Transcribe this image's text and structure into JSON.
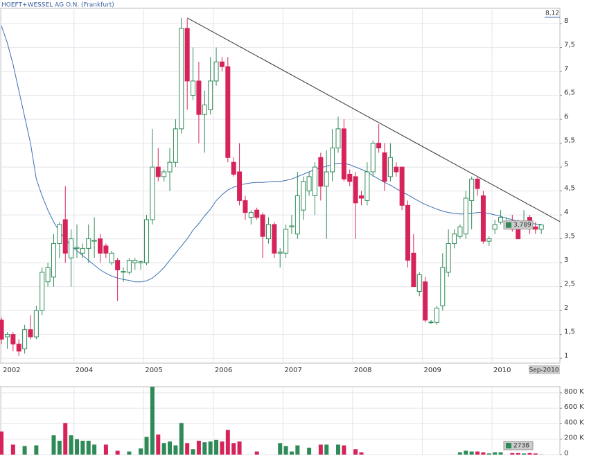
{
  "chart_data": [
    {
      "type": "candlestick",
      "title": "HOEFT+WESSEL AG O.N. (Frankfurt)",
      "open": [
        1.8,
        1.45,
        1.5,
        1.3,
        1.2,
        1.6,
        1.45,
        2.0,
        2.6,
        2.7,
        3.4,
        3.9,
        3.1,
        3.3,
        3.2,
        3.3,
        3.45,
        3.5,
        3.35,
        3.0,
        3.05,
        2.8,
        2.8,
        3.0,
        3.0,
        3.0,
        3.9,
        5.0,
        4.8,
        4.9,
        5.1,
        5.8,
        7.9,
        6.5,
        6.8,
        6.1,
        6.2,
        6.8,
        7.2,
        7.1,
        5.1,
        4.9,
        4.3,
        3.95,
        4.1,
        4.0,
        3.5,
        3.8,
        3.2,
        3.2,
        3.75,
        3.6,
        4.1,
        4.5,
        4.4,
        5.2,
        4.6,
        4.9,
        5.4,
        5.8,
        4.85,
        4.8,
        4.4,
        4.3,
        4.9,
        5.5,
        5.3,
        4.8,
        5.0,
        5.0,
        4.2,
        3.2,
        2.4,
        2.6,
        1.75,
        1.75,
        2.1,
        2.8,
        3.4,
        3.55,
        3.6,
        4.3,
        4.75,
        4.4,
        3.45,
        3.7,
        3.85,
        3.8,
        3.8,
        3.75,
        3.75,
        3.95,
        3.75,
        3.7
      ],
      "high": [
        1.85,
        1.55,
        1.55,
        1.4,
        1.7,
        1.9,
        2.1,
        2.9,
        3.0,
        3.6,
        3.85,
        4.6,
        3.7,
        3.8,
        3.4,
        3.8,
        3.95,
        3.6,
        3.4,
        3.25,
        3.1,
        2.9,
        3.1,
        3.1,
        3.05,
        4.0,
        5.8,
        5.4,
        4.95,
        5.4,
        6.0,
        8.12,
        8.1,
        7.5,
        7.2,
        6.6,
        7.3,
        7.5,
        7.3,
        7.3,
        5.2,
        5.5,
        4.4,
        4.1,
        4.15,
        4.05,
        3.95,
        3.85,
        3.3,
        3.8,
        4.0,
        4.9,
        4.8,
        4.9,
        5.1,
        5.3,
        5.35,
        5.8,
        6.05,
        6.0,
        4.95,
        4.9,
        4.5,
        5.1,
        5.55,
        5.9,
        5.5,
        5.5,
        5.1,
        5.0,
        4.3,
        3.6,
        2.8,
        2.7,
        1.8,
        2.1,
        3.2,
        3.7,
        3.7,
        3.8,
        4.5,
        4.8,
        4.8,
        4.5,
        3.55,
        3.9,
        4.1,
        3.95,
        4.0,
        3.9,
        4.1,
        4.0,
        3.85,
        3.8
      ],
      "low": [
        1.3,
        1.2,
        1.15,
        1.05,
        1.1,
        1.4,
        1.4,
        1.9,
        2.5,
        2.5,
        3.1,
        3.0,
        2.5,
        3.1,
        3.1,
        3.0,
        3.1,
        3.0,
        3.1,
        2.95,
        2.2,
        2.6,
        2.75,
        2.85,
        2.85,
        2.95,
        3.8,
        4.7,
        4.7,
        4.5,
        5.0,
        5.7,
        6.2,
        6.4,
        5.5,
        5.3,
        6.1,
        6.7,
        7.0,
        5.1,
        4.8,
        4.2,
        3.9,
        3.8,
        3.9,
        3.1,
        3.4,
        3.1,
        2.9,
        3.1,
        3.6,
        3.5,
        3.9,
        4.4,
        4.0,
        4.3,
        3.5,
        4.7,
        5.3,
        4.7,
        4.6,
        3.5,
        4.2,
        4.2,
        4.8,
        5.3,
        4.5,
        4.7,
        4.8,
        4.1,
        2.9,
        2.5,
        2.3,
        1.75,
        1.72,
        1.7,
        2.0,
        2.7,
        3.3,
        3.5,
        3.5,
        3.7,
        4.4,
        3.4,
        3.35,
        3.6,
        3.8,
        3.7,
        3.65,
        3.5,
        3.7,
        3.6,
        3.6,
        3.6
      ],
      "close": [
        1.4,
        1.5,
        1.3,
        1.15,
        1.6,
        1.45,
        2.0,
        2.8,
        2.9,
        3.4,
        3.8,
        3.2,
        3.5,
        3.32,
        3.3,
        3.5,
        3.47,
        3.2,
        3.2,
        3.2,
        2.85,
        2.82,
        3.05,
        3.05,
        3.02,
        3.9,
        5.0,
        4.8,
        4.9,
        5.1,
        5.8,
        7.9,
        6.8,
        6.8,
        6.1,
        6.3,
        6.8,
        7.2,
        7.1,
        5.2,
        4.85,
        4.3,
        4.05,
        4.05,
        3.95,
        3.55,
        3.8,
        3.2,
        3.22,
        3.7,
        3.77,
        4.4,
        4.7,
        4.8,
        5.0,
        4.6,
        4.9,
        5.4,
        5.8,
        4.75,
        4.7,
        4.25,
        4.35,
        4.9,
        5.5,
        5.4,
        4.7,
        5.2,
        4.9,
        4.2,
        3.05,
        2.5,
        2.75,
        1.8,
        1.76,
        2.05,
        2.9,
        3.4,
        3.6,
        3.75,
        4.35,
        4.75,
        4.55,
        3.45,
        3.5,
        3.8,
        3.95,
        3.85,
        3.7,
        3.5,
        3.8,
        3.8,
        3.7,
        3.789
      ],
      "ma": [
        7.95,
        7.6,
        7.15,
        6.6,
        6.05,
        5.5,
        4.75,
        4.4,
        4.1,
        3.85,
        3.65,
        3.5,
        3.35,
        3.25,
        3.15,
        3.05,
        2.95,
        2.85,
        2.78,
        2.72,
        2.68,
        2.65,
        2.63,
        2.6,
        2.6,
        2.62,
        2.68,
        2.78,
        2.9,
        3.05,
        3.2,
        3.35,
        3.5,
        3.68,
        3.82,
        3.98,
        4.12,
        4.3,
        4.42,
        4.52,
        4.58,
        4.62,
        4.65,
        4.67,
        4.68,
        4.68,
        4.69,
        4.7,
        4.7,
        4.72,
        4.75,
        4.8,
        4.85,
        4.9,
        4.95,
        4.98,
        5.02,
        5.05,
        5.08,
        5.08,
        5.05,
        5.0,
        4.95,
        4.9,
        4.82,
        4.75,
        4.68,
        4.62,
        4.55,
        4.48,
        4.42,
        4.35,
        4.28,
        4.22,
        4.17,
        4.12,
        4.08,
        4.05,
        4.03,
        4.02,
        4.02,
        4.03,
        4.05,
        4.05,
        4.03,
        4.0,
        3.97,
        3.93,
        3.9,
        3.87,
        3.85,
        3.83,
        3.81,
        3.8
      ],
      "ma_color": "#3a6fb0",
      "trendline": {
        "x": [
          32,
          96.2
        ],
        "y": [
          8.12,
          3.86
        ],
        "color": "#333333"
      },
      "up_color": "#2e8b57",
      "down_color": "#d6245a",
      "xlim": [
        -0.25,
        96.2
      ],
      "xticks": [
        {
          "value": 0,
          "label": "2002"
        },
        {
          "value": 12.5,
          "label": "2004"
        },
        {
          "value": 24.5,
          "label": "2005"
        },
        {
          "value": 36.5,
          "label": "2006"
        },
        {
          "value": 48.5,
          "label": "2007"
        },
        {
          "value": 60.5,
          "label": "2008"
        },
        {
          "value": 72.5,
          "label": "2009"
        },
        {
          "value": 84.5,
          "label": "2010"
        }
      ],
      "ylim": [
        0.9,
        8.32
      ],
      "yticks": [
        1,
        {
          "value": 1.5,
          "label": "1,5"
        },
        2,
        {
          "value": 2.5,
          "label": "2,5"
        },
        3,
        {
          "value": 3.5,
          "label": "3,5"
        },
        4,
        {
          "value": 4.5,
          "label": "4,5"
        },
        5,
        {
          "value": 5.5,
          "label": "5,5"
        },
        6,
        {
          "value": 6.5,
          "label": "6,5"
        },
        7,
        {
          "value": 7.5,
          "label": "7,5"
        },
        8
      ],
      "max_label": "8,12",
      "last_label": "3,789",
      "date_label": "Sep-2010",
      "grid": true
    },
    {
      "type": "bar",
      "values": [
        300000,
        0,
        130000,
        0,
        110000,
        0,
        120000,
        0,
        0,
        250000,
        180000,
        410000,
        250000,
        200000,
        180000,
        180000,
        130000,
        0,
        130000,
        0,
        50000,
        0,
        40000,
        0,
        80000,
        230000,
        880000,
        260000,
        150000,
        170000,
        120000,
        410000,
        150000,
        70000,
        180000,
        160000,
        170000,
        190000,
        170000,
        320000,
        150000,
        170000,
        0,
        0,
        40000,
        0,
        0,
        0,
        150000,
        110000,
        40000,
        120000,
        0,
        90000,
        0,
        130000,
        130000,
        0,
        130000,
        120000,
        0,
        70000,
        30000,
        0,
        0,
        0,
        0,
        0,
        0,
        0,
        0,
        0,
        0,
        0,
        0,
        0,
        0,
        0,
        0,
        30000,
        50000,
        40000,
        40000,
        30000,
        15000,
        30000,
        30000,
        0,
        20000,
        20000,
        15000,
        20000,
        15000,
        2738
      ],
      "ylim": [
        0,
        880000
      ],
      "yticks": [
        0,
        {
          "value": 200000,
          "label": "200 K"
        },
        {
          "value": 400000,
          "label": "400 K"
        },
        {
          "value": 600000,
          "label": "600 K"
        },
        {
          "value": 800000,
          "label": "800 K"
        }
      ],
      "last_label": "2738",
      "grid": true
    }
  ]
}
